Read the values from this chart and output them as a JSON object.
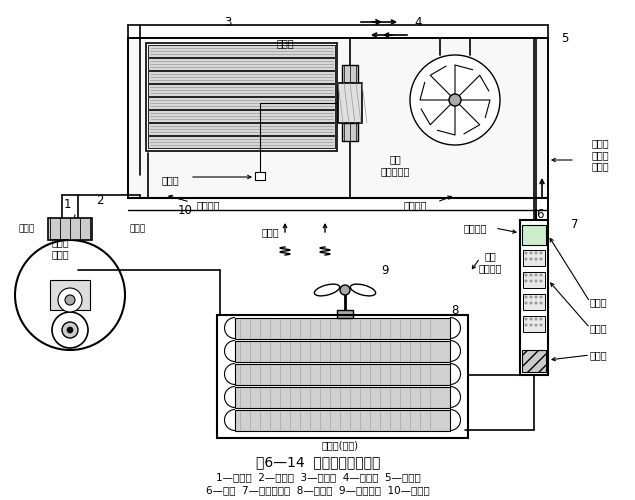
{
  "title": "图6—14  汽车空调工作原理",
  "legend_line1": "1—压缩机  2—吸气管  3—蒸发器  4—鼓风机  5—膨胀阀",
  "legend_line2": "6—液管  7—储液干燥器  8—冷凝器  9—冷却风扇  10—排气管",
  "bg_color": "#ffffff",
  "line_color": "#000000"
}
